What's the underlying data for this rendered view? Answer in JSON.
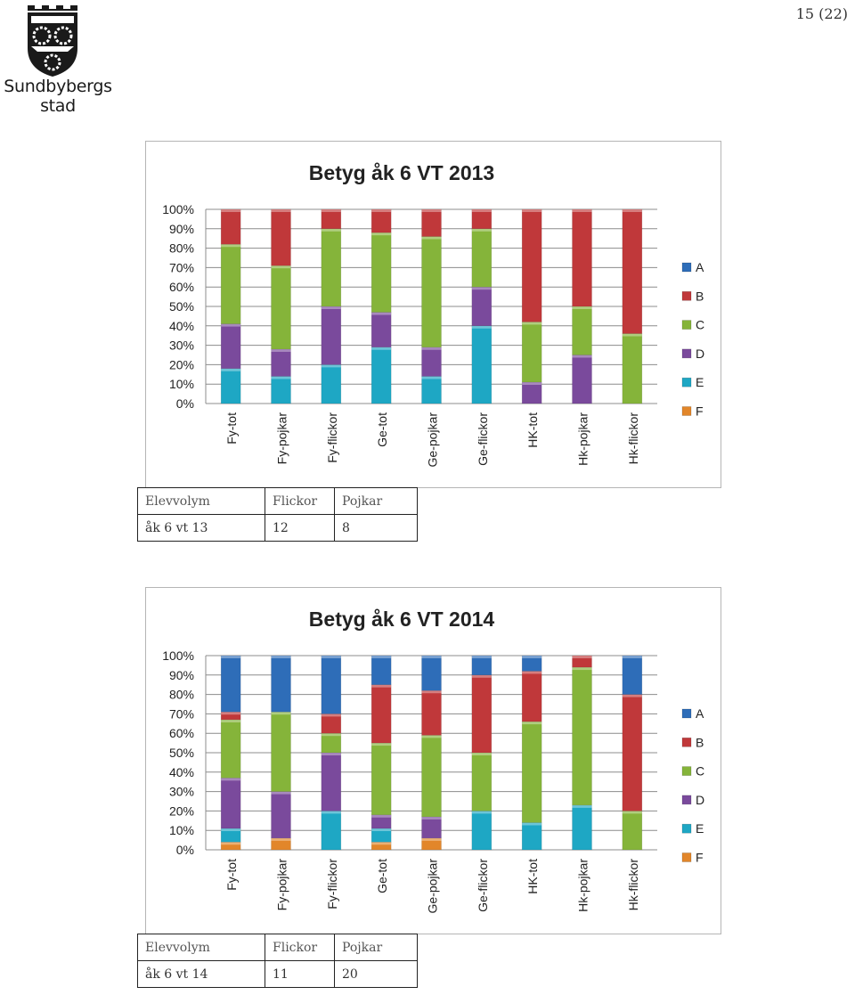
{
  "page_number": "15 (22)",
  "logo": {
    "name_line1": "Sundbybergs",
    "name_line2": "stad",
    "icon": "municipal-coat-of-arms-icon"
  },
  "colors": {
    "A": "#2e6db8",
    "B": "#c0383a",
    "C": "#85b43a",
    "D": "#7a4a9c",
    "E": "#1ea7c4",
    "F": "#e2862a"
  },
  "chart_data": [
    {
      "type": "bar",
      "stacked": true,
      "title": "Betyg åk 6 VT 2013",
      "categories": [
        "Fy-tot",
        "Fy-pojkar",
        "Fy-flickor",
        "Ge-tot",
        "Ge-pojkar",
        "Ge-flickor",
        "HK-tot",
        "Hk-pojkar",
        "Hk-flickor"
      ],
      "series": [
        {
          "name": "A",
          "values": [
            0,
            0,
            0,
            0,
            0,
            0,
            0,
            0,
            0
          ]
        },
        {
          "name": "B",
          "values": [
            18,
            29,
            10,
            12,
            14,
            10,
            58,
            50,
            64
          ]
        },
        {
          "name": "C",
          "values": [
            41,
            43,
            40,
            41,
            57,
            30,
            31,
            25,
            36
          ]
        },
        {
          "name": "D",
          "values": [
            23,
            14,
            30,
            18,
            15,
            20,
            11,
            25,
            0
          ]
        },
        {
          "name": "E",
          "values": [
            18,
            14,
            20,
            29,
            14,
            40,
            0,
            0,
            0
          ]
        },
        {
          "name": "F",
          "values": [
            0,
            0,
            0,
            0,
            0,
            0,
            0,
            0,
            0
          ]
        }
      ],
      "yticks": [
        "0%",
        "10%",
        "20%",
        "30%",
        "40%",
        "50%",
        "60%",
        "70%",
        "80%",
        "90%",
        "100%"
      ],
      "ylim": [
        0,
        100
      ],
      "grid": true,
      "legend": "right"
    },
    {
      "type": "bar",
      "stacked": true,
      "title": "Betyg åk 6 VT 2014",
      "categories": [
        "Fy-tot",
        "Fy-pojkar",
        "Fy-flickor",
        "Ge-tot",
        "Ge-pojkar",
        "Ge-flickor",
        "HK-tot",
        "Hk-pojkar",
        "Hk-flickor"
      ],
      "series": [
        {
          "name": "A",
          "values": [
            29,
            29,
            30,
            15,
            18,
            10,
            8,
            0,
            20
          ]
        },
        {
          "name": "B",
          "values": [
            4,
            0,
            10,
            30,
            23,
            40,
            26,
            6,
            60
          ]
        },
        {
          "name": "C",
          "values": [
            30,
            41,
            10,
            37,
            42,
            30,
            52,
            71,
            20
          ]
        },
        {
          "name": "D",
          "values": [
            26,
            24,
            30,
            7,
            11,
            0,
            0,
            0,
            0
          ]
        },
        {
          "name": "E",
          "values": [
            7,
            0,
            20,
            7,
            0,
            20,
            14,
            23,
            0
          ]
        },
        {
          "name": "F",
          "values": [
            4,
            6,
            0,
            4,
            6,
            0,
            0,
            0,
            0
          ]
        }
      ],
      "yticks": [
        "0%",
        "10%",
        "20%",
        "30%",
        "40%",
        "50%",
        "60%",
        "70%",
        "80%",
        "90%",
        "100%"
      ],
      "ylim": [
        0,
        100
      ],
      "grid": true,
      "legend": "right"
    }
  ],
  "tables": [
    {
      "headers": [
        "Elevvolym",
        "Flickor",
        "Pojkar"
      ],
      "row": [
        "åk 6 vt 13",
        "12",
        "8"
      ]
    },
    {
      "headers": [
        "Elevvolym",
        "Flickor",
        "Pojkar"
      ],
      "row": [
        "åk 6 vt 14",
        "11",
        "20"
      ]
    }
  ]
}
